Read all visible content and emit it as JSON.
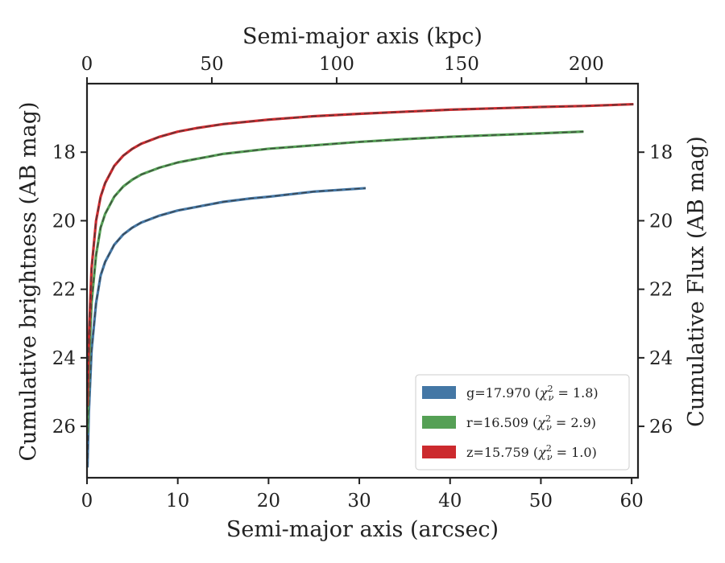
{
  "chart_data": {
    "type": "line",
    "xlabel": "Semi-major axis (arcsec)",
    "ylabel": "Cumulative brightness (AB mag)",
    "xlabel_top": "Semi-major axis (kpc)",
    "ylabel_right": "Cumulative Flux (AB mag)",
    "xlim": [
      0,
      60.7
    ],
    "ylim": [
      27.5,
      16.0
    ],
    "y_inverted": true,
    "xlim_top": [
      0,
      220.7
    ],
    "x_ticks": [
      0,
      10,
      20,
      30,
      40,
      50,
      60
    ],
    "x_tick_labels": [
      "0",
      "10",
      "20",
      "30",
      "40",
      "50",
      "60"
    ],
    "y_ticks": [
      18,
      20,
      22,
      24,
      26
    ],
    "y_tick_labels": [
      "18",
      "20",
      "22",
      "24",
      "26"
    ],
    "x_top_ticks": [
      0,
      50,
      100,
      150,
      200
    ],
    "x_top_tick_labels": [
      "0",
      "50",
      "100",
      "150",
      "200"
    ],
    "grid": false,
    "legend_position": "lower-right",
    "series": [
      {
        "name": "g=17.970 (χ²ν = 1.8)",
        "legend_prefix": "g=17.970 (",
        "legend_suffix": " = 1.8)",
        "color": "#4477a5",
        "x": [
          0.05,
          0.2,
          0.5,
          1,
          1.5,
          2,
          3,
          4,
          5,
          6,
          8,
          10,
          12,
          15,
          18,
          20,
          25,
          30.7
        ],
        "y": [
          27.2,
          25.6,
          23.8,
          22.4,
          21.6,
          21.2,
          20.7,
          20.4,
          20.2,
          20.05,
          19.85,
          19.7,
          19.6,
          19.45,
          19.35,
          19.3,
          19.15,
          19.05
        ]
      },
      {
        "name": "r=16.509 (χ²ν = 2.9)",
        "legend_prefix": "r=16.509 (",
        "legend_suffix": " = 2.9)",
        "color": "#55a055",
        "x": [
          0.05,
          0.2,
          0.5,
          1,
          1.5,
          2,
          3,
          4,
          5,
          6,
          8,
          10,
          12,
          15,
          20,
          25,
          30,
          35,
          40,
          45,
          50,
          54.7
        ],
        "y": [
          26.2,
          24.3,
          22.4,
          21.0,
          20.2,
          19.8,
          19.3,
          19.0,
          18.8,
          18.65,
          18.45,
          18.3,
          18.2,
          18.05,
          17.9,
          17.8,
          17.7,
          17.62,
          17.55,
          17.5,
          17.45,
          17.4
        ]
      },
      {
        "name": "z=15.759 (χ²ν = 1.0)",
        "legend_prefix": "z=15.759 (",
        "legend_suffix": " = 1.0)",
        "color": "#cc2a2e",
        "x": [
          0.05,
          0.2,
          0.5,
          1,
          1.5,
          2,
          3,
          4,
          5,
          6,
          8,
          10,
          12,
          15,
          20,
          25,
          30,
          35,
          40,
          45,
          50,
          55,
          60.2
        ],
        "y": [
          25.4,
          23.5,
          21.4,
          20.0,
          19.3,
          18.9,
          18.4,
          18.1,
          17.9,
          17.75,
          17.55,
          17.4,
          17.3,
          17.18,
          17.05,
          16.95,
          16.88,
          16.82,
          16.76,
          16.72,
          16.68,
          16.65,
          16.6
        ]
      }
    ]
  }
}
